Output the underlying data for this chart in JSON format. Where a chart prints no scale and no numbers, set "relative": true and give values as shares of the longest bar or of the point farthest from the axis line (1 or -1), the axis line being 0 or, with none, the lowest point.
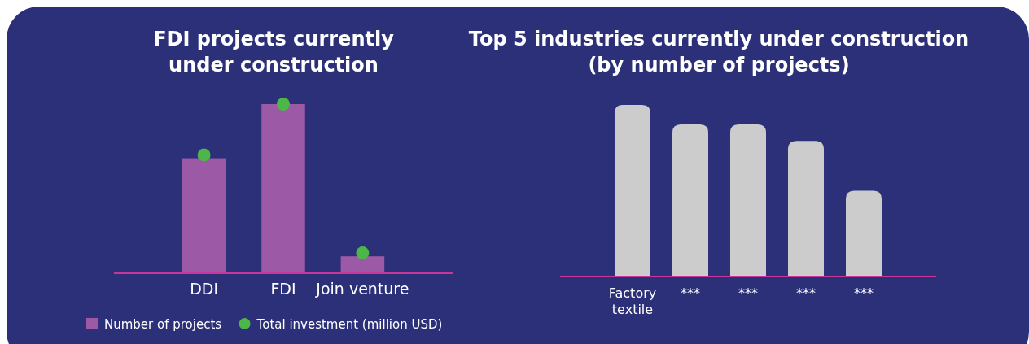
{
  "chart_data": [
    {
      "type": "bar",
      "title": "FDI projects currently under construction",
      "categories": [
        "DDI",
        "FDI",
        "Join venture"
      ],
      "relative": true,
      "legend": "bottom",
      "marker": "circle",
      "series": [
        {
          "name": "Number of projects",
          "type": "bar",
          "color": "#9b59a6",
          "values": [
            0.68,
            1,
            0.1
          ]
        },
        {
          "name": "Total investment (million USD)",
          "type": "scatter",
          "color": "#4cb648",
          "values": [
            0.7,
            1,
            0.12
          ]
        }
      ]
    },
    {
      "type": "bar",
      "title": "Top 5 industries currently under construction (by number of projects)",
      "categories": [
        "Factory textile",
        "***",
        "***",
        "***",
        "***"
      ],
      "relative": true,
      "color": "#cccccc",
      "values": [
        1,
        0.886,
        0.886,
        0.79,
        0.5
      ]
    }
  ]
}
